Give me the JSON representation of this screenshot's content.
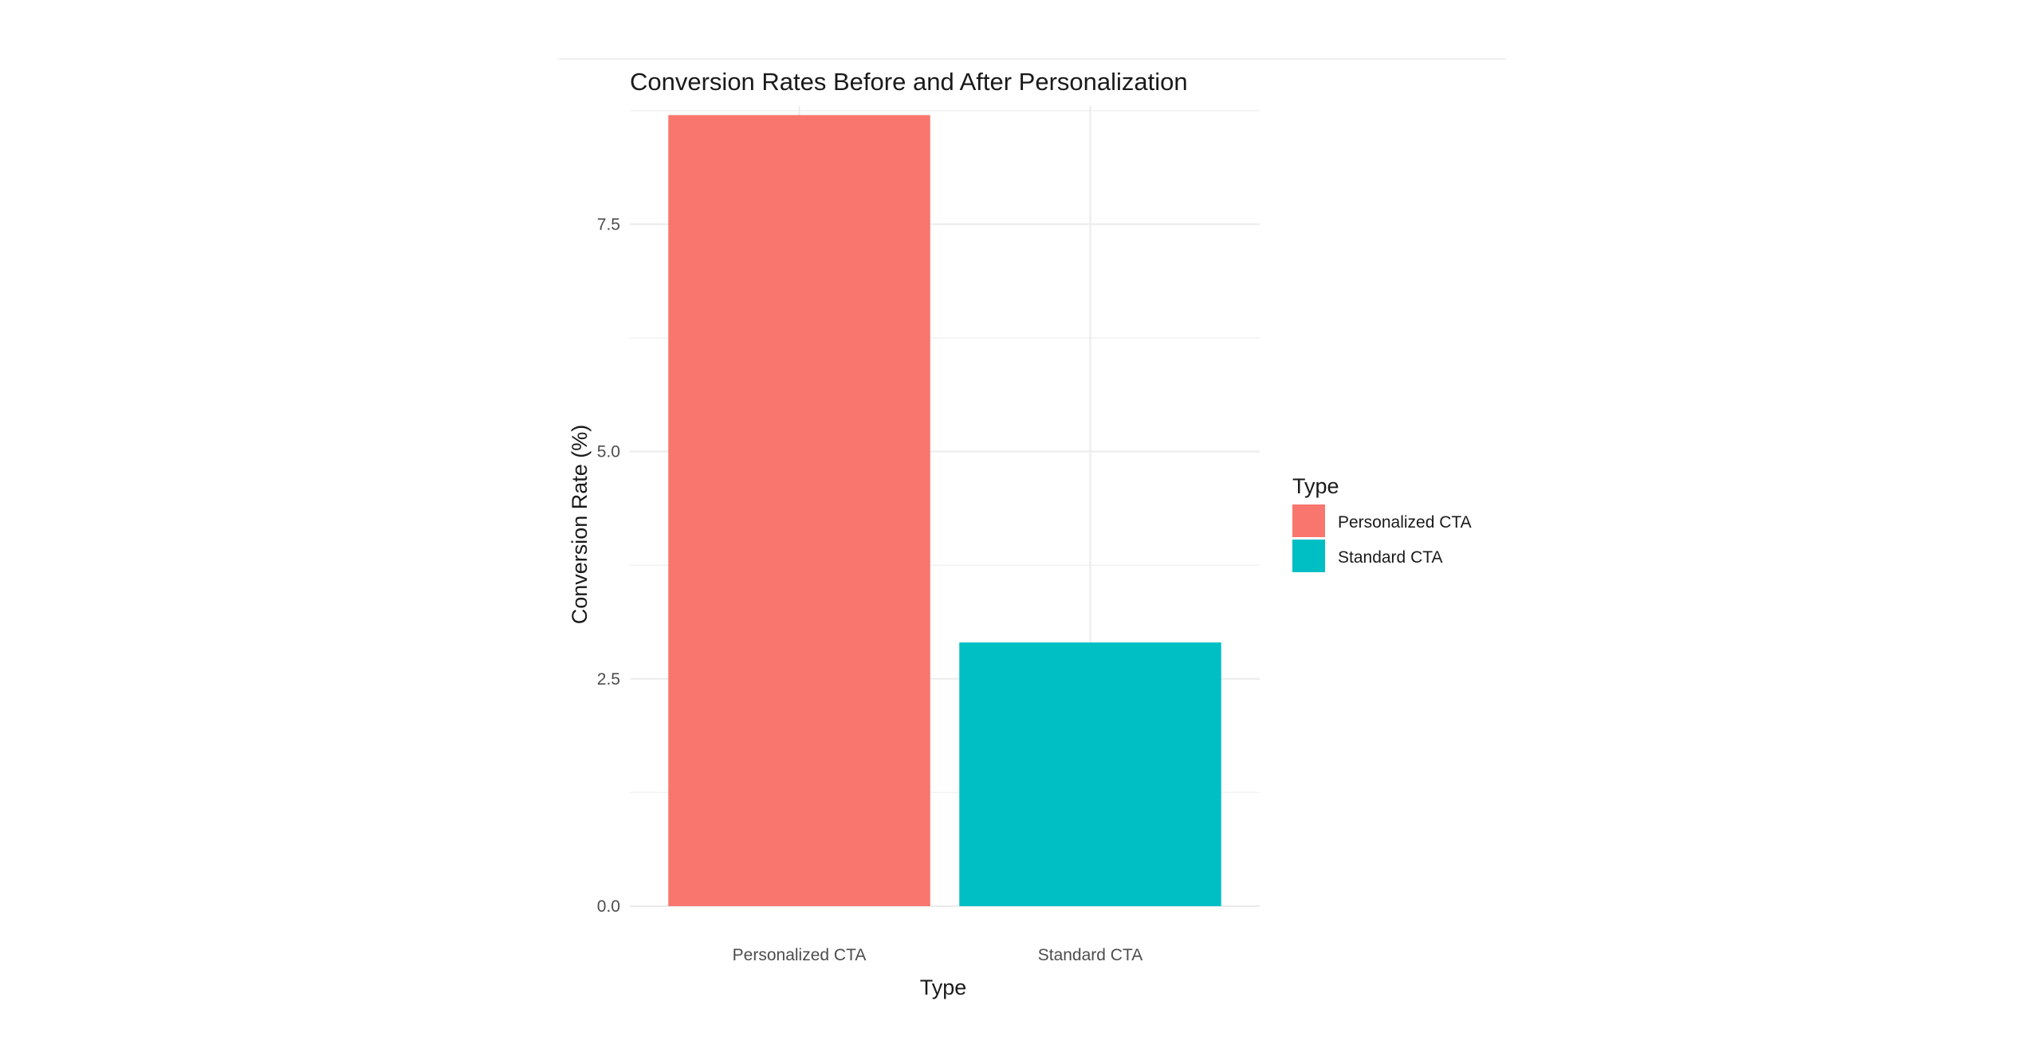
{
  "chart_data": {
    "type": "bar",
    "title": "Conversion Rates Before and After Personalization",
    "xlabel": "Type",
    "ylabel": "Conversion Rate (%)",
    "categories": [
      "Personalized CTA",
      "Standard CTA"
    ],
    "values": [
      8.7,
      2.9
    ],
    "colors": [
      "#F8766D",
      "#00BFC4"
    ],
    "ylim": [
      0,
      8.8
    ],
    "yticks": [
      0,
      2.5,
      5,
      7.5
    ],
    "ytick_labels": [
      "0.0",
      "2.5",
      "5.0",
      "7.5"
    ],
    "grid": true,
    "legend": {
      "title": "Type",
      "position": "right",
      "entries": [
        "Personalized CTA",
        "Standard CTA"
      ]
    }
  }
}
